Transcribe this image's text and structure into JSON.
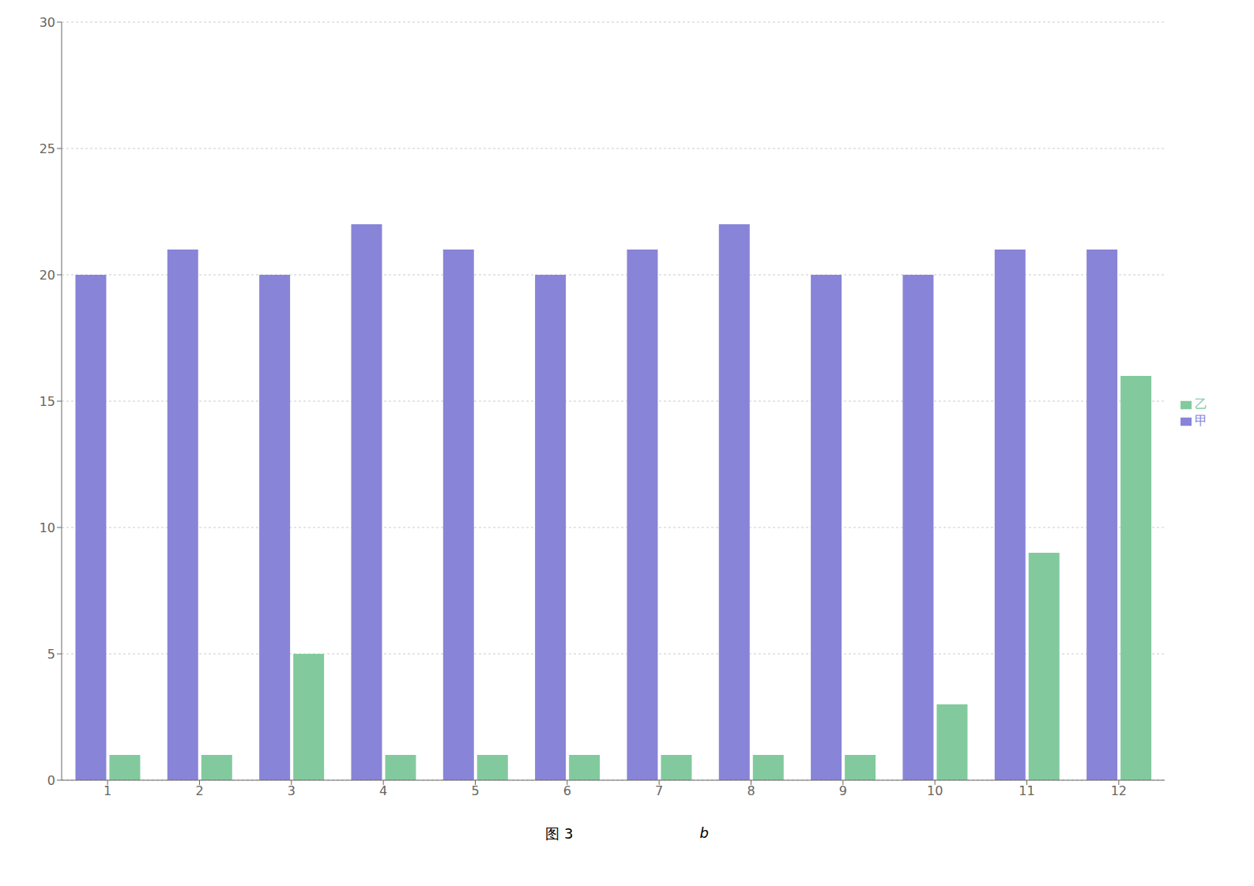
{
  "chart_data": {
    "type": "bar",
    "categories": [
      "1",
      "2",
      "3",
      "4",
      "5",
      "6",
      "7",
      "8",
      "9",
      "10",
      "11",
      "12"
    ],
    "series": [
      {
        "name": "甲",
        "color": "#8884d8",
        "values": [
          20,
          21,
          20,
          22,
          21,
          20,
          21,
          22,
          20,
          20,
          21,
          21
        ]
      },
      {
        "name": "乙",
        "color": "#82ca9d",
        "values": [
          1,
          1,
          5,
          1,
          1,
          1,
          1,
          1,
          1,
          3,
          9,
          16
        ]
      }
    ],
    "ylim": [
      0,
      30
    ],
    "yticks": [
      0,
      5,
      10,
      15,
      20,
      25,
      30
    ],
    "grid": true,
    "legend": "right",
    "annotations": [
      "图 3",
      "b"
    ]
  }
}
